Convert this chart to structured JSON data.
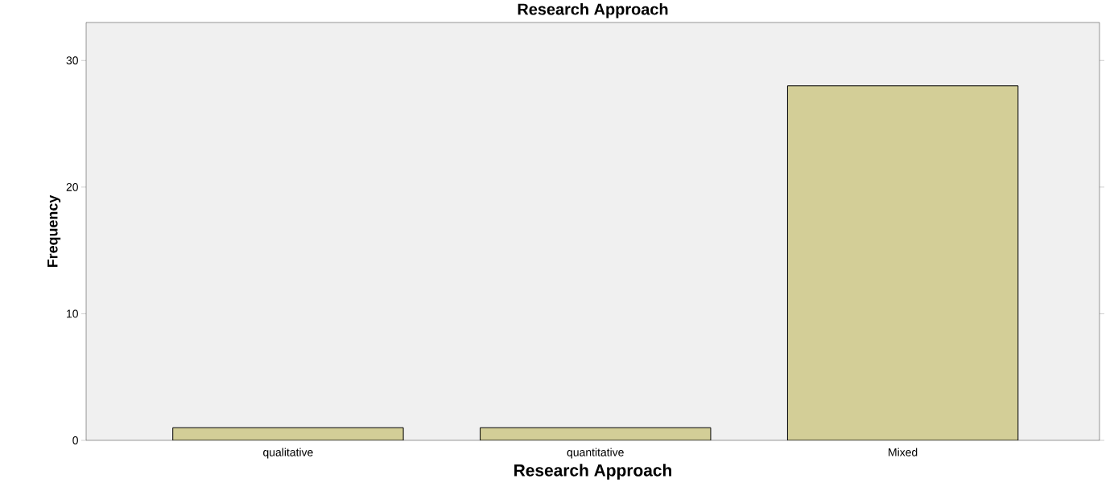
{
  "chart_data": {
    "type": "bar",
    "title": "Research Approach",
    "xlabel": "Research Approach",
    "ylabel": "Frequency",
    "categories": [
      "qualitative",
      "quantitative",
      "Mixed"
    ],
    "values": [
      1,
      1,
      28
    ],
    "color": "#d3ce97",
    "ylim": [
      0,
      33
    ],
    "yticks": [
      0,
      10,
      20,
      30
    ],
    "grid": false
  }
}
